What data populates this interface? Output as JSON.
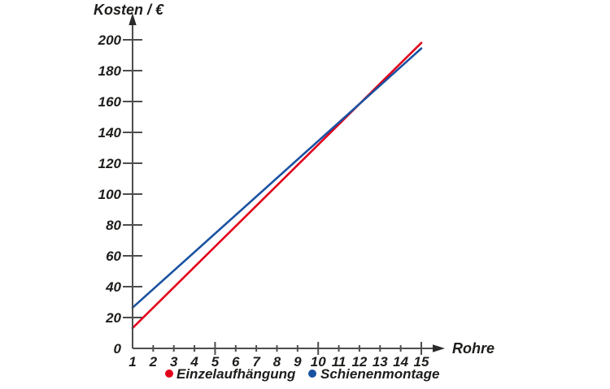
{
  "chart_data": {
    "type": "line",
    "title": "",
    "xlabel": "Rohre",
    "ylabel": "Kosten / €",
    "xlim": [
      1,
      15
    ],
    "ylim": [
      0,
      200
    ],
    "x_ticks": [
      1,
      2,
      3,
      4,
      5,
      6,
      7,
      8,
      9,
      10,
      11,
      12,
      13,
      14,
      15
    ],
    "x_major_ticks": [
      5,
      10,
      15
    ],
    "y_ticks": [
      0,
      20,
      40,
      60,
      80,
      100,
      120,
      140,
      160,
      180,
      200
    ],
    "grid": false,
    "legend_position": "bottom",
    "series": [
      {
        "name": "Einzelaufhängung",
        "color": "#e2001a",
        "slope": 13.2,
        "intercept": 0,
        "points": [
          [
            1,
            13.2
          ],
          [
            15,
            198.0
          ]
        ]
      },
      {
        "name": "Schienenmontage",
        "color": "#1a52a2",
        "slope": 12,
        "intercept": 14.4,
        "points": [
          [
            1,
            26.4
          ],
          [
            15,
            194.4
          ]
        ]
      }
    ],
    "intersection": {
      "x": 12,
      "y": 158.4
    }
  },
  "colors": {
    "axis": "#4d4d4d",
    "text": "#1d1d1b",
    "background": "#ffffff"
  }
}
